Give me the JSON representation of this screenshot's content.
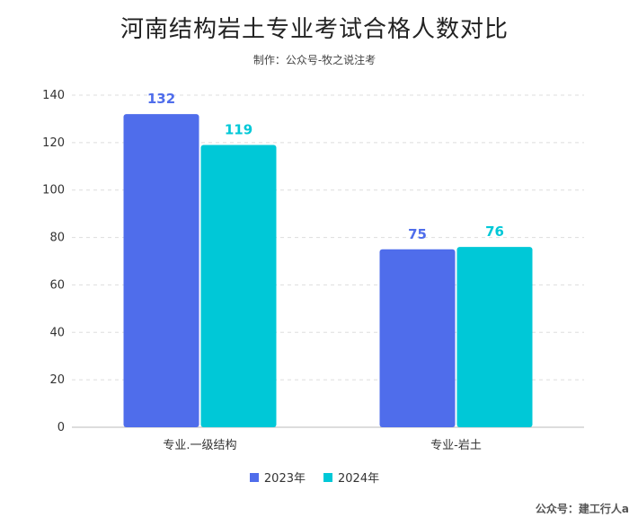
{
  "chart_data": {
    "type": "bar",
    "title": "河南结构岩土专业考试合格人数对比",
    "subtitle": "制作：公众号-牧之说注考",
    "categories": [
      "专业.一级结构",
      "专业-岩土"
    ],
    "series": [
      {
        "name": "2023年",
        "values": [
          132,
          75
        ],
        "color": "#4F6DEB"
      },
      {
        "name": "2024年",
        "values": [
          119,
          76
        ],
        "color": "#00C8D7"
      }
    ],
    "xlabel": "",
    "ylabel": "",
    "ylim": [
      0,
      140
    ],
    "yticks": [
      0,
      20,
      40,
      60,
      80,
      100,
      120,
      140
    ],
    "grid": true,
    "legend": "bottom"
  },
  "watermark": "公众号：建工行人a"
}
